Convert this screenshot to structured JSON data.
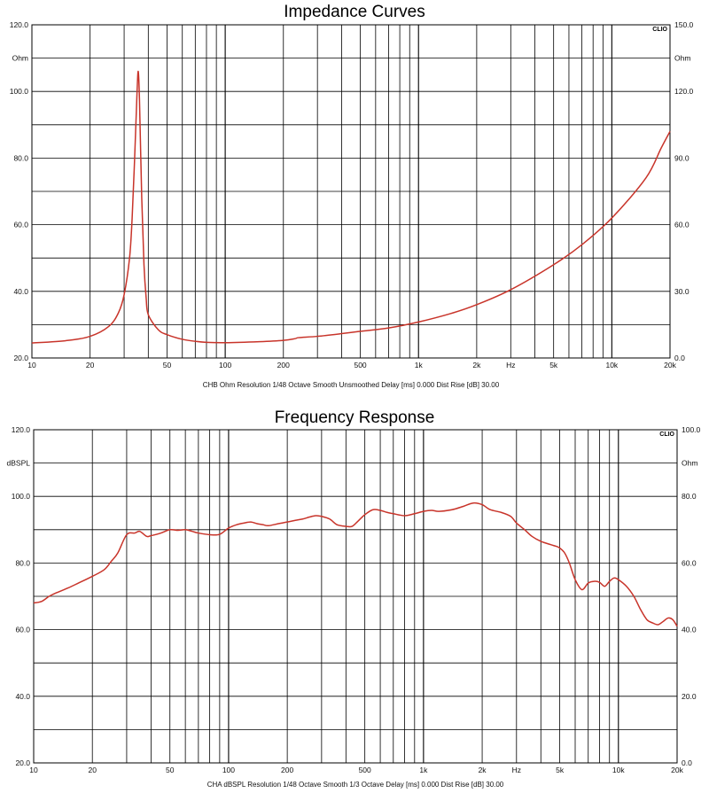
{
  "chart_data": [
    {
      "type": "line",
      "title": "Impedance Curves",
      "logo": "CLIO",
      "footer": "CHB Ohm Resolution 1/48 Octave Smooth Unsmoothed Delay [ms] 0.000 Dist Rise [dB] 30.00",
      "x_scale": "log",
      "xlim": [
        10,
        20000
      ],
      "ylim": [
        20,
        120
      ],
      "y2lim": [
        0,
        150
      ],
      "x_tick_labels": [
        {
          "value": 10,
          "label": "10"
        },
        {
          "value": 20,
          "label": "20"
        },
        {
          "value": 50,
          "label": "50"
        },
        {
          "value": 100,
          "label": "100"
        },
        {
          "value": 200,
          "label": "200"
        },
        {
          "value": 500,
          "label": "500"
        },
        {
          "value": 1000,
          "label": "1k"
        },
        {
          "value": 2000,
          "label": "2k"
        },
        {
          "value": 5000,
          "label": "5k"
        },
        {
          "value": 10000,
          "label": "10k"
        },
        {
          "value": 20000,
          "label": "20k"
        }
      ],
      "x_unit_label": {
        "value": 3000,
        "label": "Hz"
      },
      "y_tick_labels": [
        {
          "value": 120,
          "label": "120.0"
        },
        {
          "value": 100,
          "label": "100.0"
        },
        {
          "value": 80,
          "label": "80.0"
        },
        {
          "value": 60,
          "label": "60.0"
        },
        {
          "value": 40,
          "label": "40.0"
        },
        {
          "value": 20,
          "label": "20.0"
        }
      ],
      "y_unit_label": {
        "value": 110,
        "label": "Ohm"
      },
      "y2_tick_labels": [
        {
          "value": 150,
          "label": "150.0"
        },
        {
          "value": 120,
          "label": "120.0"
        },
        {
          "value": 90,
          "label": "90.0"
        },
        {
          "value": 60,
          "label": "60.0"
        },
        {
          "value": 30,
          "label": "30.0"
        },
        {
          "value": 0,
          "label": "0.0"
        }
      ],
      "y2_unit_label": {
        "value": 135,
        "label": "Ohm"
      },
      "grid": true,
      "line_color": "#c8342a",
      "series": [
        {
          "x": [
            10,
            15,
            20,
            25,
            28,
            30,
            32,
            33,
            34,
            35,
            35.5,
            36,
            37,
            38,
            39,
            40,
            45,
            50,
            60,
            70,
            80,
            100,
            150,
            200,
            230,
            240,
            300,
            400,
            500,
            700,
            1000,
            1500,
            2000,
            3000,
            5000,
            7000,
            10000,
            15000,
            18000,
            20000
          ],
          "y": [
            24.5,
            25.2,
            26.5,
            29.5,
            33.5,
            39,
            50,
            62,
            80,
            100,
            106,
            98,
            68,
            48,
            38,
            33,
            28.5,
            27,
            25.6,
            25,
            24.7,
            24.6,
            24.9,
            25.3,
            25.8,
            26.1,
            26.5,
            27.3,
            28,
            29,
            30.8,
            33.5,
            36,
            40.5,
            48,
            54,
            62,
            74,
            83,
            88
          ]
        }
      ]
    },
    {
      "type": "line",
      "title": "Frequency Response",
      "logo": "CLIO",
      "footer": "CHA dBSPL Resolution 1/48 Octave Smooth 1/3 Octave Delay [ms] 0.000 Dist Rise [dB] 30.00",
      "x_scale": "log",
      "xlim": [
        10,
        20000
      ],
      "ylim": [
        20,
        120
      ],
      "y2lim": [
        0,
        100
      ],
      "x_tick_labels": [
        {
          "value": 10,
          "label": "10"
        },
        {
          "value": 20,
          "label": "20"
        },
        {
          "value": 50,
          "label": "50"
        },
        {
          "value": 100,
          "label": "100"
        },
        {
          "value": 200,
          "label": "200"
        },
        {
          "value": 500,
          "label": "500"
        },
        {
          "value": 1000,
          "label": "1k"
        },
        {
          "value": 2000,
          "label": "2k"
        },
        {
          "value": 5000,
          "label": "5k"
        },
        {
          "value": 10000,
          "label": "10k"
        },
        {
          "value": 20000,
          "label": "20k"
        }
      ],
      "x_unit_label": {
        "value": 3000,
        "label": "Hz"
      },
      "y_tick_labels": [
        {
          "value": 120,
          "label": "120.0"
        },
        {
          "value": 100,
          "label": "100.0"
        },
        {
          "value": 80,
          "label": "80.0"
        },
        {
          "value": 60,
          "label": "60.0"
        },
        {
          "value": 40,
          "label": "40.0"
        },
        {
          "value": 20,
          "label": "20.0"
        }
      ],
      "y_unit_label": {
        "value": 110,
        "label": "dBSPL"
      },
      "y2_tick_labels": [
        {
          "value": 100,
          "label": "100.0"
        },
        {
          "value": 80,
          "label": "80.0"
        },
        {
          "value": 60,
          "label": "60.0"
        },
        {
          "value": 40,
          "label": "40.0"
        },
        {
          "value": 20,
          "label": "20.0"
        },
        {
          "value": 0,
          "label": "0.0"
        }
      ],
      "y2_unit_label": {
        "value": 90,
        "label": "Ohm"
      },
      "grid": true,
      "line_color": "#c8342a",
      "series": [
        {
          "x": [
            10,
            11,
            12,
            13,
            15,
            17,
            20,
            23,
            25,
            27,
            30,
            33,
            35,
            38,
            40,
            45,
            50,
            55,
            60,
            65,
            70,
            80,
            90,
            100,
            110,
            120,
            130,
            140,
            150,
            160,
            180,
            200,
            220,
            240,
            260,
            280,
            300,
            330,
            360,
            400,
            430,
            460,
            500,
            550,
            600,
            650,
            700,
            800,
            900,
            1000,
            1100,
            1200,
            1400,
            1600,
            1800,
            2000,
            2200,
            2500,
            2800,
            3000,
            3300,
            3600,
            4000,
            4500,
            4800,
            5000,
            5300,
            5600,
            6000,
            6500,
            7000,
            7500,
            8000,
            8500,
            9000,
            9500,
            10000,
            11000,
            12000,
            13000,
            14000,
            15000,
            16000,
            17000,
            18000,
            19000,
            20000
          ],
          "y": [
            68,
            68.5,
            70,
            71,
            72.5,
            74,
            76,
            78,
            80.5,
            83,
            88.5,
            89,
            89.5,
            88,
            88.2,
            89,
            90,
            89.8,
            90,
            89.5,
            89,
            88.5,
            88.6,
            90.5,
            91.5,
            92,
            92.3,
            91.8,
            91.5,
            91.2,
            91.8,
            92.3,
            92.8,
            93.2,
            93.8,
            94.2,
            94,
            93.2,
            91.5,
            91,
            91,
            92.5,
            94.5,
            96,
            95.8,
            95.2,
            94.8,
            94.2,
            94.8,
            95.5,
            95.8,
            95.5,
            96,
            97,
            98,
            97.5,
            96,
            95.2,
            94,
            92,
            90,
            88,
            86.5,
            85.5,
            85,
            84.5,
            83,
            80,
            75,
            72,
            74,
            74.5,
            74.2,
            73,
            74.5,
            75.5,
            75,
            73,
            70,
            66,
            63,
            62,
            61.5,
            62.5,
            63.5,
            63,
            61
          ]
        }
      ]
    }
  ]
}
